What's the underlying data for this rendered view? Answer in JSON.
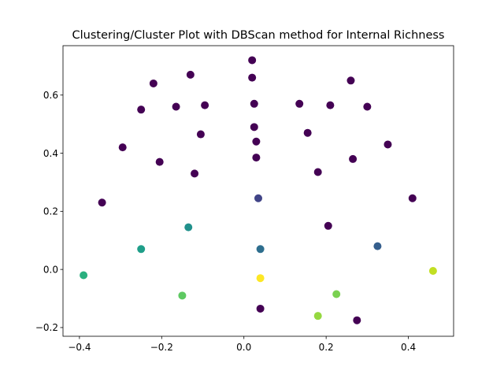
{
  "chart_data": {
    "type": "scatter",
    "title": "Clustering/Cluster Plot with DBScan method for Internal Richness",
    "xlabel": "",
    "ylabel": "",
    "xlim": [
      -0.44,
      0.51
    ],
    "ylim": [
      -0.23,
      0.77
    ],
    "xticks": [
      -0.4,
      -0.2,
      0.0,
      0.2,
      0.4
    ],
    "xtick_labels": [
      "−0.4",
      "−0.2",
      "0.0",
      "0.2",
      "0.4"
    ],
    "yticks": [
      -0.2,
      0.0,
      0.2,
      0.4,
      0.6
    ],
    "ytick_labels": [
      "−0.2",
      "0.0",
      "0.2",
      "0.4",
      "0.6"
    ],
    "grid": false,
    "legend": "none",
    "colormap": "viridis",
    "points": [
      {
        "x": 0.02,
        "y": 0.72,
        "color": "#440154"
      },
      {
        "x": 0.02,
        "y": 0.66,
        "color": "#440154"
      },
      {
        "x": -0.13,
        "y": 0.67,
        "color": "#440154"
      },
      {
        "x": -0.22,
        "y": 0.64,
        "color": "#440154"
      },
      {
        "x": -0.165,
        "y": 0.56,
        "color": "#440154"
      },
      {
        "x": -0.095,
        "y": 0.565,
        "color": "#440154"
      },
      {
        "x": -0.25,
        "y": 0.55,
        "color": "#440154"
      },
      {
        "x": 0.025,
        "y": 0.57,
        "color": "#440154"
      },
      {
        "x": 0.26,
        "y": 0.65,
        "color": "#440154"
      },
      {
        "x": 0.3,
        "y": 0.56,
        "color": "#440154"
      },
      {
        "x": 0.135,
        "y": 0.57,
        "color": "#440154"
      },
      {
        "x": 0.21,
        "y": 0.565,
        "color": "#440154"
      },
      {
        "x": 0.025,
        "y": 0.49,
        "color": "#440154"
      },
      {
        "x": 0.155,
        "y": 0.47,
        "color": "#440154"
      },
      {
        "x": -0.105,
        "y": 0.465,
        "color": "#440154"
      },
      {
        "x": 0.03,
        "y": 0.44,
        "color": "#440154"
      },
      {
        "x": 0.35,
        "y": 0.43,
        "color": "#440154"
      },
      {
        "x": -0.295,
        "y": 0.42,
        "color": "#440154"
      },
      {
        "x": 0.03,
        "y": 0.385,
        "color": "#440154"
      },
      {
        "x": 0.265,
        "y": 0.38,
        "color": "#440154"
      },
      {
        "x": -0.205,
        "y": 0.37,
        "color": "#440154"
      },
      {
        "x": 0.18,
        "y": 0.335,
        "color": "#440154"
      },
      {
        "x": -0.12,
        "y": 0.33,
        "color": "#440154"
      },
      {
        "x": 0.41,
        "y": 0.245,
        "color": "#440154"
      },
      {
        "x": -0.345,
        "y": 0.23,
        "color": "#440154"
      },
      {
        "x": 0.205,
        "y": 0.15,
        "color": "#440154"
      },
      {
        "x": 0.275,
        "y": -0.175,
        "color": "#440154"
      },
      {
        "x": 0.04,
        "y": -0.135,
        "color": "#440154"
      },
      {
        "x": 0.035,
        "y": 0.245,
        "color": "#414487"
      },
      {
        "x": 0.325,
        "y": 0.08,
        "color": "#355f8d"
      },
      {
        "x": 0.04,
        "y": 0.07,
        "color": "#2e6e8e"
      },
      {
        "x": -0.135,
        "y": 0.145,
        "color": "#21918c"
      },
      {
        "x": -0.25,
        "y": 0.07,
        "color": "#1f9e89"
      },
      {
        "x": -0.39,
        "y": -0.02,
        "color": "#2ab07f"
      },
      {
        "x": -0.15,
        "y": -0.09,
        "color": "#5ec962"
      },
      {
        "x": 0.225,
        "y": -0.085,
        "color": "#7ad151"
      },
      {
        "x": 0.18,
        "y": -0.16,
        "color": "#95d840"
      },
      {
        "x": 0.46,
        "y": -0.005,
        "color": "#c2df23"
      },
      {
        "x": 0.04,
        "y": -0.03,
        "color": "#fde725"
      }
    ]
  }
}
